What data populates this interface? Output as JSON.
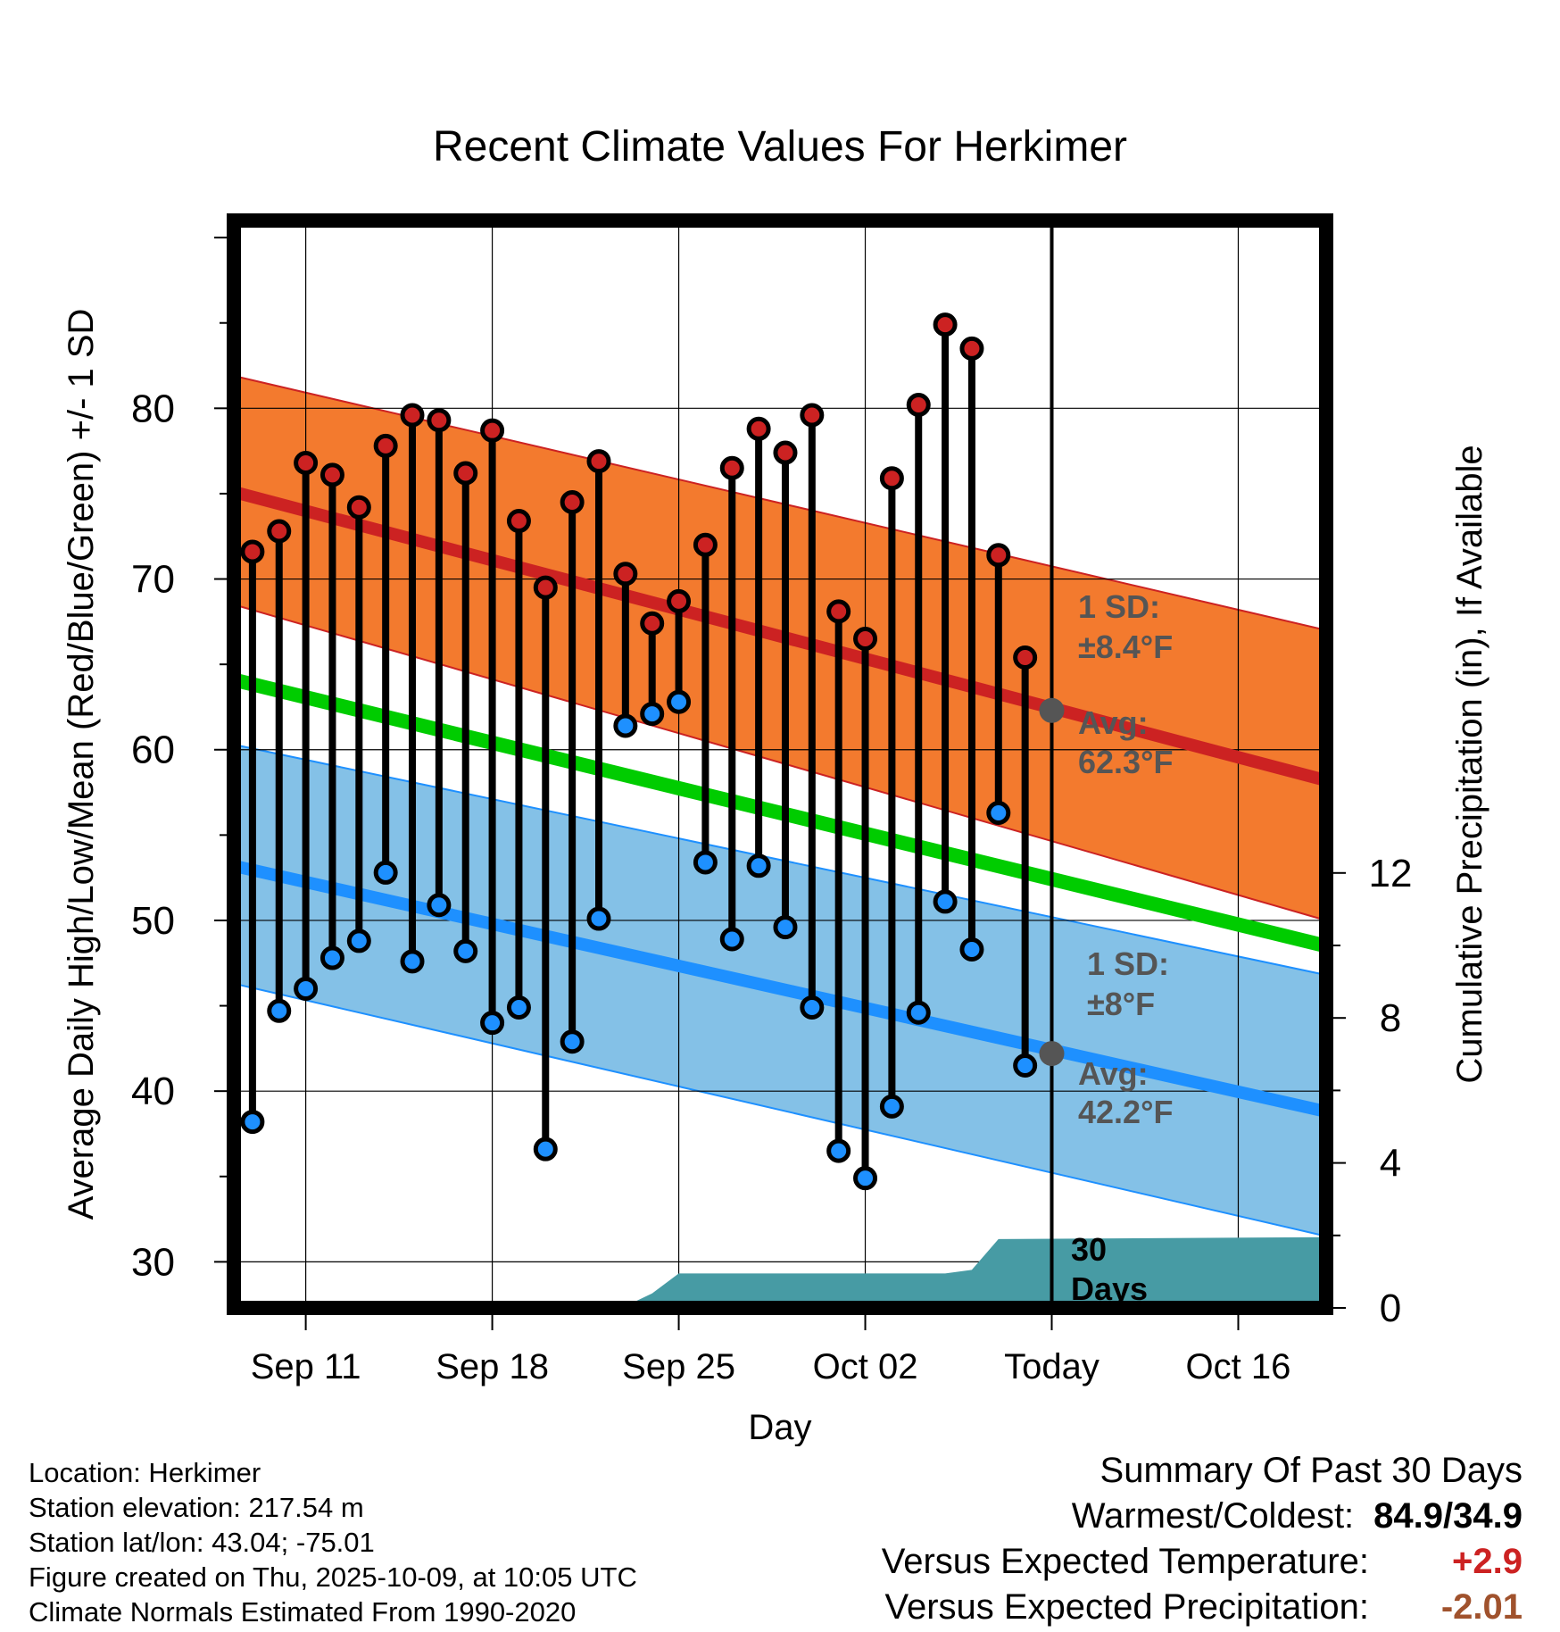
{
  "chart_data": {
    "type": "line",
    "title": "Recent Climate Values For Herkimer",
    "xlabel": "Day",
    "ylabel": "Average Daily High/Low/Mean (Red/Blue/Green) +/- 1 SD",
    "y2label": "Cumulative Precipitation (in), If Available",
    "ylim": [
      27.3,
      91
    ],
    "y2lim": [
      0,
      30
    ],
    "yticks": [
      30,
      40,
      50,
      60,
      70,
      80
    ],
    "y2ticks": [
      0,
      4,
      8,
      12
    ],
    "xlim": [
      8.3,
      49.3
    ],
    "xticks": [
      {
        "day": 11,
        "label": "Sep 11"
      },
      {
        "day": 18,
        "label": "Sep 18"
      },
      {
        "day": 25,
        "label": "Sep 25"
      },
      {
        "day": 32,
        "label": "Oct 02"
      },
      {
        "day": 39,
        "label": "Today"
      },
      {
        "day": 46,
        "label": "Oct 16"
      }
    ],
    "today_day": 39,
    "days": [
      9,
      10,
      11,
      12,
      13,
      14,
      15,
      16,
      17,
      18,
      19,
      20,
      21,
      22,
      23,
      24,
      25,
      26,
      27,
      28,
      29,
      30,
      31,
      32,
      33,
      34,
      35,
      36,
      37,
      38
    ],
    "highs": [
      71.6,
      72.8,
      76.8,
      76.1,
      74.2,
      77.8,
      79.6,
      79.3,
      76.2,
      78.7,
      73.4,
      69.5,
      74.5,
      76.9,
      70.3,
      67.4,
      68.7,
      72.0,
      76.5,
      78.8,
      77.4,
      79.6,
      68.1,
      66.5,
      75.9,
      80.2,
      84.9,
      83.5,
      71.4,
      65.4
    ],
    "lows": [
      38.2,
      44.7,
      46.0,
      47.8,
      48.8,
      52.8,
      47.6,
      50.9,
      48.2,
      44.0,
      44.9,
      36.6,
      42.9,
      50.1,
      61.4,
      62.1,
      62.8,
      53.4,
      48.9,
      53.2,
      49.6,
      44.9,
      36.5,
      34.9,
      39.1,
      44.6,
      51.1,
      48.3,
      56.3,
      41.5
    ],
    "series": [
      {
        "name": "Average High",
        "color": "#cc2222",
        "x": [
          8.3,
          49.3
        ],
        "values": [
          75.1,
          58.2
        ]
      },
      {
        "name": "Average Low",
        "color": "#1e90ff",
        "x": [
          8.3,
          49.3
        ],
        "values": [
          53.2,
          38.8
        ]
      },
      {
        "name": "Average Mean",
        "color": "#00cc00",
        "x": [
          8.3,
          49.3
        ],
        "values": [
          64.1,
          48.5
        ]
      },
      {
        "name": "High +1 SD",
        "color": "#cc2222",
        "x": [
          8.3,
          49.3
        ],
        "values": [
          81.9,
          67.0
        ]
      },
      {
        "name": "High -1 SD",
        "color": "#cc2222",
        "x": [
          8.3,
          49.3
        ],
        "values": [
          68.5,
          50.0
        ]
      },
      {
        "name": "Low +1 SD",
        "color": "#1e90ff",
        "x": [
          8.3,
          49.3
        ],
        "values": [
          60.3,
          46.8
        ]
      },
      {
        "name": "Low -1 SD",
        "color": "#1e90ff",
        "x": [
          8.3,
          49.3
        ],
        "values": [
          46.3,
          31.5
        ]
      }
    ],
    "precip_cumulative": {
      "color": "#479ba4",
      "x": [
        8.3,
        22.5,
        23.0,
        24.0,
        25.0,
        35.0,
        36.0,
        37.0,
        49.3
      ],
      "values": [
        0,
        0,
        0.05,
        0.4,
        0.95,
        0.95,
        1.05,
        1.9,
        1.95
      ]
    },
    "high_avg_today": 62.3,
    "low_avg_today": 42.2,
    "annotations": {
      "high_sd_title": "1 SD:",
      "high_sd_value": "±8.4°F",
      "high_avg_title": "Avg:",
      "high_avg_value": "62.3°F",
      "low_sd_title": "1 SD:",
      "low_sd_value": "±8°F",
      "low_avg_title": "Avg:",
      "low_avg_value": "42.2°F",
      "precip_days_1": "30",
      "precip_days_2": "Days"
    },
    "colors": {
      "high_band": "#f37a2e",
      "low_band": "#84c1e7",
      "high_line": "#cc2222",
      "low_line": "#1e90ff",
      "mean_line": "#00cc00",
      "precip": "#479ba4",
      "marker_gray": "#555555"
    }
  },
  "footer": {
    "location": "Location: Herkimer",
    "elevation": "Station elevation: 217.54 m",
    "latlon": "Station lat/lon: 43.04; -75.01",
    "created": "Figure created on Thu, 2025-10-09, at 10:05 UTC",
    "normals": "Climate Normals Estimated From 1990-2020"
  },
  "summary": {
    "title": "Summary Of Past 30 Days",
    "warmest_label": "Warmest/Coldest:",
    "warmest_value": "84.9/34.9",
    "temp_label": "Versus Expected Temperature:",
    "temp_value": "+2.9",
    "precip_label": "Versus Expected Precipitation:",
    "precip_value": "-2.01"
  }
}
